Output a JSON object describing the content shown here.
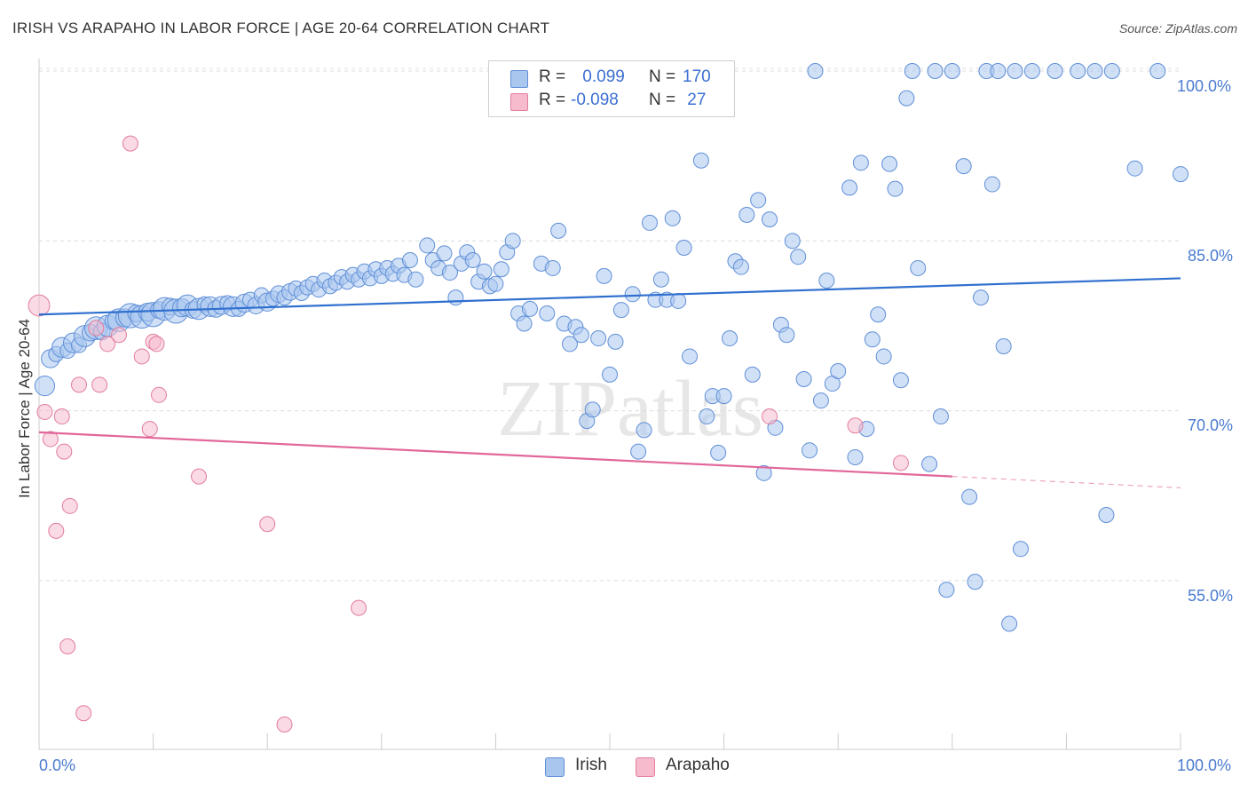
{
  "title": "IRISH VS ARAPAHO IN LABOR FORCE | AGE 20-64 CORRELATION CHART",
  "source": "Source: ZipAtlas.com",
  "watermark": "ZIPatlas",
  "legend": {
    "irish": {
      "r_label": "R = ",
      "r_value": " 0.099",
      "n_label": "N = ",
      "n_value": "170"
    },
    "arapaho": {
      "r_label": "R = ",
      "r_value": "-0.098",
      "n_label": "N = ",
      "n_value": " 27"
    }
  },
  "bottom_legend": {
    "irish": "Irish",
    "arapaho": "Arapaho"
  },
  "colors": {
    "irish_fill": "#a9c6ef",
    "irish_stroke": "#5f8fd8",
    "irish_line": "#2f6fcf",
    "arapaho_fill": "#f6bccd",
    "arapaho_stroke": "#e27d9c",
    "arapaho_line": "#e2679a",
    "axis_text": "#4a7bd0",
    "grid": "#dcdcdc"
  },
  "chart_data": {
    "type": "scatter",
    "title": "IRISH VS ARAPAHO IN LABOR FORCE | AGE 20-64 CORRELATION CHART",
    "xlabel": "",
    "ylabel": "In Labor Force | Age 20-64",
    "xlim": [
      0,
      100
    ],
    "ylim": [
      42,
      101.5
    ],
    "x_tick_labels": [
      "0.0%",
      "100.0%"
    ],
    "y_ticks": [
      55,
      70,
      85,
      100
    ],
    "y_tick_labels": [
      "55.0%",
      "70.0%",
      "85.0%",
      "100.0%"
    ],
    "grid": true,
    "legend_position": "top-center",
    "series": [
      {
        "name": "Irish",
        "trend": {
          "x": [
            0,
            100
          ],
          "y": [
            78.5,
            81.7
          ]
        },
        "points": [
          [
            0.5,
            72.2,
            1.3
          ],
          [
            1,
            74.6,
            1.2
          ],
          [
            1.5,
            75.0,
            1.0
          ],
          [
            2,
            75.6,
            1.3
          ],
          [
            2.5,
            75.3,
            1.0
          ],
          [
            3,
            76.0,
            1.3
          ],
          [
            3.5,
            75.8,
            1.0
          ],
          [
            4,
            76.6,
            1.4
          ],
          [
            4.5,
            76.9,
            1.1
          ],
          [
            5,
            77.3,
            1.5
          ],
          [
            5.5,
            77.0,
            1.1
          ],
          [
            6,
            77.5,
            1.4
          ],
          [
            6.5,
            77.9,
            1.1
          ],
          [
            7,
            78.0,
            1.5
          ],
          [
            7.5,
            78.2,
            1.2
          ],
          [
            8,
            78.4,
            1.6
          ],
          [
            8.5,
            78.6,
            1.1
          ],
          [
            9,
            78.3,
            1.5
          ],
          [
            9.5,
            78.7,
            1.2
          ],
          [
            10,
            78.5,
            1.6
          ],
          [
            10.5,
            78.9,
            1.1
          ],
          [
            11,
            79.0,
            1.5
          ],
          [
            11.5,
            79.2,
            1.1
          ],
          [
            12,
            78.8,
            1.6
          ],
          [
            12.5,
            79.1,
            1.2
          ],
          [
            13,
            79.3,
            1.4
          ],
          [
            13.5,
            78.9,
            1.1
          ],
          [
            14,
            79.0,
            1.4
          ],
          [
            14.5,
            79.4,
            1.0
          ],
          [
            15,
            79.2,
            1.3
          ],
          [
            15.5,
            79.0,
            1.1
          ],
          [
            16,
            79.3,
            1.2
          ],
          [
            16.5,
            79.5,
            1.0
          ],
          [
            17,
            79.2,
            1.3
          ],
          [
            17.5,
            79.0,
            1.0
          ],
          [
            18,
            79.5,
            1.2
          ],
          [
            18.5,
            79.8,
            1.0
          ],
          [
            19,
            79.3,
            1.1
          ],
          [
            19.5,
            80.2,
            1.0
          ],
          [
            20,
            79.6,
            1.2
          ],
          [
            20.5,
            79.9,
            1.0
          ],
          [
            21,
            80.3,
            1.1
          ],
          [
            21.5,
            80.0,
            1.0
          ],
          [
            22,
            80.5,
            1.1
          ],
          [
            22.5,
            80.8,
            1.0
          ],
          [
            23,
            80.4,
            1.0
          ],
          [
            23.5,
            80.9,
            1.0
          ],
          [
            24,
            81.2,
            1.0
          ],
          [
            24.5,
            80.7,
            1.0
          ],
          [
            25,
            81.5,
            1.0
          ],
          [
            25.5,
            81.0,
            1.0
          ],
          [
            26,
            81.3,
            1.0
          ],
          [
            26.5,
            81.8,
            1.0
          ],
          [
            27,
            81.4,
            1.0
          ],
          [
            27.5,
            82.0,
            1.0
          ],
          [
            28,
            81.6,
            1.0
          ],
          [
            28.5,
            82.3,
            1.0
          ],
          [
            29,
            81.7,
            1.0
          ],
          [
            29.5,
            82.5,
            1.0
          ],
          [
            30,
            81.9,
            1.0
          ],
          [
            30.5,
            82.6,
            1.0
          ],
          [
            31,
            82.1,
            1.0
          ],
          [
            31.5,
            82.8,
            1.0
          ],
          [
            32,
            82.0,
            1.0
          ],
          [
            32.5,
            83.3,
            1.0
          ],
          [
            33,
            81.6,
            1.0
          ],
          [
            34,
            84.6,
            1.0
          ],
          [
            34.5,
            83.3,
            1.0
          ],
          [
            35,
            82.6,
            1.0
          ],
          [
            35.5,
            83.9,
            1.0
          ],
          [
            36,
            82.2,
            1.0
          ],
          [
            36.5,
            80.0,
            1.0
          ],
          [
            37,
            83.0,
            1.0
          ],
          [
            37.5,
            84.0,
            1.0
          ],
          [
            38,
            83.3,
            1.0
          ],
          [
            38.5,
            81.4,
            1.0
          ],
          [
            39,
            82.3,
            1.0
          ],
          [
            39.5,
            81.0,
            1.0
          ],
          [
            40,
            81.2,
            1.0
          ],
          [
            40.5,
            82.5,
            1.0
          ],
          [
            41,
            84.0,
            1.0
          ],
          [
            41.5,
            85.0,
            1.0
          ],
          [
            42,
            78.6,
            1.0
          ],
          [
            42.5,
            77.7,
            1.0
          ],
          [
            43,
            79.0,
            1.0
          ],
          [
            44,
            83.0,
            1.0
          ],
          [
            44.5,
            78.6,
            1.0
          ],
          [
            45,
            82.6,
            1.0
          ],
          [
            45.5,
            85.9,
            1.0
          ],
          [
            46,
            77.7,
            1.0
          ],
          [
            46.5,
            75.9,
            1.0
          ],
          [
            47,
            77.4,
            1.0
          ],
          [
            47.5,
            76.7,
            1.0
          ],
          [
            48,
            69.1,
            1.0
          ],
          [
            48.5,
            70.1,
            1.0
          ],
          [
            49,
            76.4,
            1.0
          ],
          [
            49.5,
            81.9,
            1.0
          ],
          [
            50,
            73.2,
            1.0
          ],
          [
            50.5,
            76.1,
            1.0
          ],
          [
            51,
            78.9,
            1.0
          ],
          [
            52,
            80.3,
            1.0
          ],
          [
            52.5,
            66.4,
            1.0
          ],
          [
            53,
            68.3,
            1.0
          ],
          [
            53.5,
            86.6,
            1.0
          ],
          [
            54,
            79.8,
            1.0
          ],
          [
            54.5,
            81.6,
            1.0
          ],
          [
            55,
            79.8,
            1.0
          ],
          [
            55.5,
            87.0,
            1.0
          ],
          [
            56,
            79.7,
            1.0
          ],
          [
            56.5,
            84.4,
            1.0
          ],
          [
            57,
            74.8,
            1.0
          ],
          [
            58,
            92.1,
            1.0
          ],
          [
            58.5,
            69.5,
            1.0
          ],
          [
            59,
            71.3,
            1.0
          ],
          [
            59.5,
            66.3,
            1.0
          ],
          [
            60,
            71.3,
            1.0
          ],
          [
            60.5,
            76.4,
            1.0
          ],
          [
            61,
            83.2,
            1.0
          ],
          [
            61.5,
            82.7,
            1.0
          ],
          [
            62,
            87.3,
            1.0
          ],
          [
            62.5,
            73.2,
            1.0
          ],
          [
            63,
            88.6,
            1.0
          ],
          [
            63.5,
            64.5,
            1.0
          ],
          [
            64,
            86.9,
            1.0
          ],
          [
            64.5,
            68.5,
            1.0
          ],
          [
            65,
            77.6,
            1.0
          ],
          [
            65.5,
            76.7,
            1.0
          ],
          [
            66,
            85.0,
            1.0
          ],
          [
            66.5,
            83.6,
            1.0
          ],
          [
            67,
            72.8,
            1.0
          ],
          [
            67.5,
            66.5,
            1.0
          ],
          [
            68,
            100.0,
            1.0
          ],
          [
            68.5,
            70.9,
            1.0
          ],
          [
            69,
            81.5,
            1.0
          ],
          [
            69.5,
            72.4,
            1.0
          ],
          [
            70,
            73.5,
            1.0
          ],
          [
            71,
            89.7,
            1.0
          ],
          [
            71.5,
            65.9,
            1.0
          ],
          [
            72,
            91.9,
            1.0
          ],
          [
            72.5,
            68.4,
            1.0
          ],
          [
            73,
            76.3,
            1.0
          ],
          [
            73.5,
            78.5,
            1.0
          ],
          [
            74,
            74.8,
            1.0
          ],
          [
            74.5,
            91.8,
            1.0
          ],
          [
            75,
            89.6,
            1.0
          ],
          [
            75.5,
            72.7,
            1.0
          ],
          [
            76,
            97.6,
            1.0
          ],
          [
            76.5,
            100.0,
            1.0
          ],
          [
            77,
            82.6,
            1.0
          ],
          [
            78,
            65.3,
            1.0
          ],
          [
            78.5,
            100.0,
            1.0
          ],
          [
            79,
            69.5,
            1.0
          ],
          [
            79.5,
            54.2,
            1.0
          ],
          [
            80,
            100.0,
            1.0
          ],
          [
            81,
            91.6,
            1.0
          ],
          [
            81.5,
            62.4,
            1.0
          ],
          [
            82,
            54.9,
            1.0
          ],
          [
            82.5,
            80.0,
            1.0
          ],
          [
            83,
            100.0,
            1.0
          ],
          [
            83.5,
            90.0,
            1.0
          ],
          [
            84,
            100.0,
            1.0
          ],
          [
            84.5,
            75.7,
            1.0
          ],
          [
            85,
            51.2,
            1.0
          ],
          [
            85.5,
            100.0,
            1.0
          ],
          [
            86,
            57.8,
            1.0
          ],
          [
            87,
            100.0,
            1.0
          ],
          [
            89,
            100.0,
            1.0
          ],
          [
            91,
            100.0,
            1.0
          ],
          [
            92.5,
            100.0,
            1.0
          ],
          [
            93.5,
            60.8,
            1.0
          ],
          [
            94,
            100.0,
            1.0
          ],
          [
            96,
            91.4,
            1.0
          ],
          [
            98,
            100.0,
            1.0
          ],
          [
            100,
            90.9,
            1.0
          ]
        ]
      },
      {
        "name": "Arapaho",
        "trend": {
          "x": [
            0,
            80
          ],
          "y": [
            68.1,
            64.2
          ]
        },
        "trend_dashed": {
          "x": [
            80,
            100
          ],
          "y": [
            64.2,
            63.2
          ]
        },
        "points": [
          [
            0,
            79.3,
            1.4
          ],
          [
            0.5,
            69.9,
            1.0
          ],
          [
            1,
            67.5,
            1.0
          ],
          [
            1.5,
            59.4,
            1.0
          ],
          [
            2,
            69.5,
            1.0
          ],
          [
            2.2,
            66.4,
            1.0
          ],
          [
            2.5,
            49.2,
            1.0
          ],
          [
            2.7,
            61.6,
            1.0
          ],
          [
            3.5,
            72.3,
            1.0
          ],
          [
            3.9,
            43.3,
            1.0
          ],
          [
            5,
            77.3,
            1.0
          ],
          [
            5.3,
            72.3,
            1.0
          ],
          [
            6,
            75.9,
            1.0
          ],
          [
            7,
            76.7,
            1.0
          ],
          [
            8,
            93.6,
            1.0
          ],
          [
            9,
            74.8,
            1.0
          ],
          [
            9.7,
            68.4,
            1.0
          ],
          [
            10,
            76.1,
            1.0
          ],
          [
            10.3,
            75.9,
            1.0
          ],
          [
            10.5,
            71.4,
            1.0
          ],
          [
            14,
            64.2,
            1.0
          ],
          [
            20,
            60.0,
            1.0
          ],
          [
            21.5,
            42.3,
            1.0
          ],
          [
            28,
            52.6,
            1.0
          ],
          [
            64,
            69.5,
            1.0
          ],
          [
            71.5,
            68.7,
            1.0
          ],
          [
            75.5,
            65.4,
            1.0
          ]
        ]
      }
    ]
  }
}
